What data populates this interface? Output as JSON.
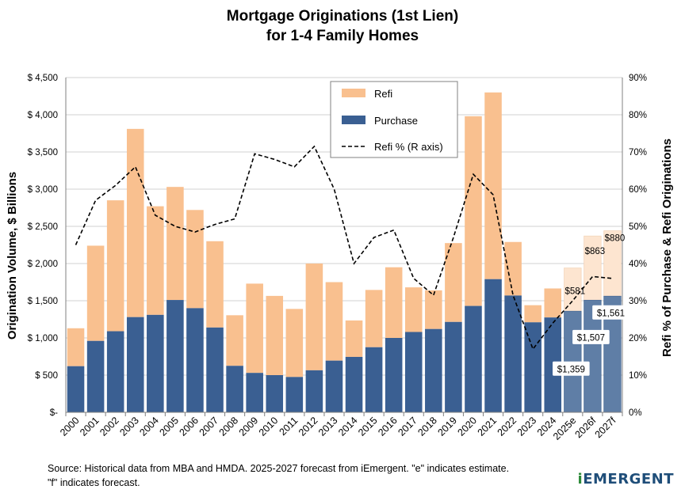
{
  "title_line1": "Mortgage Originations (1st Lien)",
  "title_line2": "for 1-4 Family Homes",
  "source_line1": "Source:  Historical data from MBA and HMDA.  2025-2027 forecast from iEmergent. \"e\" indicates estimate.",
  "source_line2": "\"f\" indicates forecast.",
  "brand_i": "i",
  "brand_rest": "EMERGENT",
  "chart_data": {
    "type": "bar",
    "stacked": true,
    "title": "Mortgage Originations (1st Lien) for 1-4 Family Homes",
    "categories": [
      "2000",
      "2001",
      "2002",
      "2003",
      "2004",
      "2005",
      "2006",
      "2007",
      "2008",
      "2009",
      "2010",
      "2011",
      "2012",
      "2013",
      "2014",
      "2015",
      "2016",
      "2017",
      "2018",
      "2019",
      "2020",
      "2021",
      "2022",
      "2023",
      "2024",
      "2025e",
      "2026f",
      "2027f"
    ],
    "forecast_from_index": 25,
    "series": [
      {
        "name": "Purchase",
        "axis": "left",
        "color": "#3a5f92",
        "values": [
          620,
          960,
          1090,
          1280,
          1310,
          1510,
          1400,
          1140,
          625,
          530,
          500,
          475,
          565,
          695,
          745,
          875,
          1000,
          1080,
          1120,
          1215,
          1430,
          1790,
          1570,
          1210,
          1275,
          1359,
          1507,
          1561
        ]
      },
      {
        "name": "Refi",
        "axis": "left",
        "color": "#f9c08f",
        "values": [
          510,
          1280,
          1760,
          2530,
          1460,
          1520,
          1320,
          1160,
          680,
          1200,
          1065,
          915,
          1435,
          1055,
          490,
          770,
          950,
          600,
          520,
          1060,
          2550,
          2510,
          720,
          230,
          390,
          581,
          863,
          880
        ]
      },
      {
        "name": "Refi % (R axis)",
        "axis": "right",
        "type": "line",
        "style": "dashed",
        "color": "#000000",
        "values": [
          45,
          57,
          61,
          66,
          53,
          50,
          48.5,
          50.5,
          52,
          69.5,
          68,
          66,
          71.5,
          60,
          40,
          47,
          49,
          36,
          31.5,
          47,
          64,
          58.5,
          31.5,
          17,
          24,
          30,
          36.5,
          36
        ]
      }
    ],
    "labels_purchase": [
      "$1,359",
      "$1,507",
      "$1,561"
    ],
    "labels_refi": [
      "$581",
      "$863",
      "$880"
    ],
    "ylabel_left": "Origination Volume, $ Billions",
    "ylabel_right": "Refi % of Purchase & Refi Originations",
    "ylim_left": [
      0,
      4500
    ],
    "ylim_right": [
      0,
      90
    ],
    "yticks_left": [
      "$-",
      "$ 500",
      "$ 1,000",
      "$ 1,500",
      "$ 2,000",
      "$ 2,500",
      "$ 3,000",
      "$ 3,500",
      "$ 4,000",
      "$ 4,500"
    ],
    "yticks_right": [
      "0%",
      "10%",
      "20%",
      "30%",
      "40%",
      "50%",
      "60%",
      "70%",
      "80%",
      "90%"
    ],
    "grid": true,
    "legend_position": "top-center",
    "legend": [
      "Refi",
      "Purchase",
      "Refi % (R axis)"
    ]
  }
}
